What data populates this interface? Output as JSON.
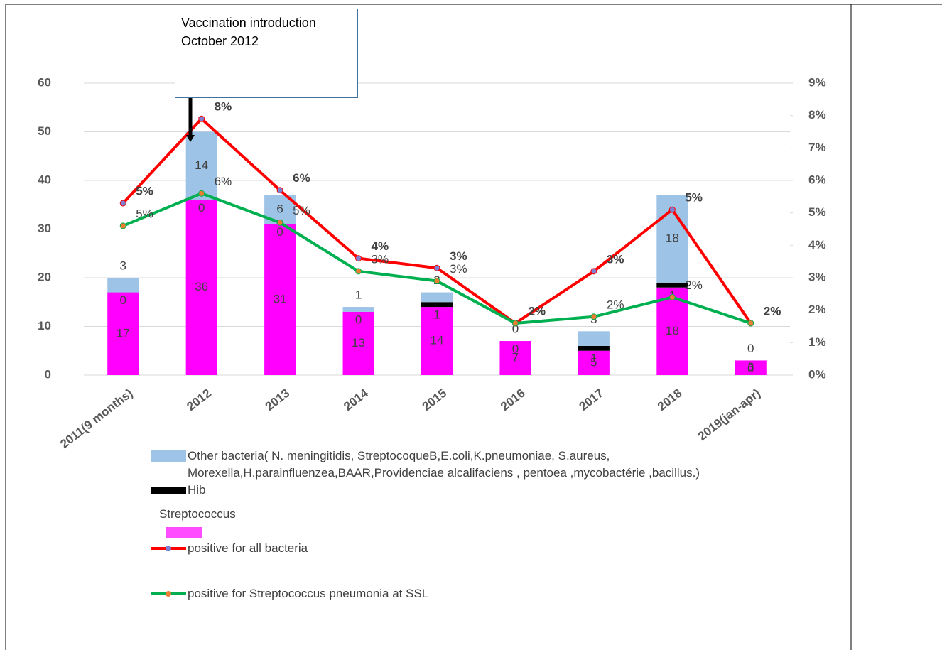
{
  "chart_data": {
    "type": "bar",
    "stacked": true,
    "annotation": "Vaccination introduction October  2012",
    "categories": [
      "2011(9 months)",
      "2012",
      "2013",
      "2014",
      "2015",
      "2016",
      "2017",
      "2018",
      "2019(jan-apr)"
    ],
    "series": [
      {
        "name": "Streptococcus",
        "color": "#ff00ff",
        "values": [
          17,
          36,
          31,
          13,
          14,
          7,
          5,
          18,
          3
        ]
      },
      {
        "name": "Hib",
        "color": "#000000",
        "values": [
          0,
          0,
          0,
          0,
          1,
          0,
          1,
          1,
          0
        ]
      },
      {
        "name": "Other bacteria( N. meningitidis, StreptocoqueB,E.coli,K.pneumoniae, S.aureus, Morexella,H.parainfluenzea,BAAR,Providenciae alcalifaciens , pentoea ,mycobactérie ,bacillus.)",
        "color": "#9dc3e6",
        "values": [
          3,
          14,
          6,
          1,
          2,
          0,
          3,
          18,
          0
        ]
      },
      {
        "name": "positive for all bacteria",
        "type": "line",
        "axis": "y2",
        "color": "#ff0000",
        "marker_color": "#7f7fd0",
        "values": [
          5.3,
          7.9,
          5.7,
          3.6,
          3.3,
          1.6,
          3.2,
          5.1,
          1.6
        ],
        "value_labels": [
          "5%",
          "8%",
          "6%",
          "4%",
          "3%",
          "2%",
          "3%",
          "5%",
          "2%"
        ]
      },
      {
        "name": "positive for Streptococcus pneumonia at SSL",
        "type": "line",
        "axis": "y2",
        "color": "#00b050",
        "marker_color": "#ed7d31",
        "values": [
          4.6,
          5.6,
          4.7,
          3.2,
          2.9,
          1.6,
          1.8,
          2.4,
          1.6
        ],
        "value_labels": [
          "5%",
          "6%",
          "5%",
          "3%",
          "3%",
          "2%",
          "2%",
          "2%",
          "2%"
        ]
      }
    ],
    "ylim": [
      0,
      60
    ],
    "yticks": [
      0,
      10,
      20,
      30,
      40,
      50,
      60
    ],
    "y2lim": [
      0,
      9
    ],
    "y2ticks": [
      {
        "value": 0,
        "label": "0%"
      },
      {
        "value": 1,
        "label": "1%"
      },
      {
        "value": 2,
        "label": "2%"
      },
      {
        "value": 3,
        "label": "3%"
      },
      {
        "value": 4,
        "label": "4%"
      },
      {
        "value": 5,
        "label": "5%"
      },
      {
        "value": 6,
        "label": "6%"
      },
      {
        "value": 7,
        "label": "7%"
      },
      {
        "value": 8,
        "label": "8%"
      },
      {
        "value": 9,
        "label": "9%"
      }
    ],
    "grid": true
  }
}
